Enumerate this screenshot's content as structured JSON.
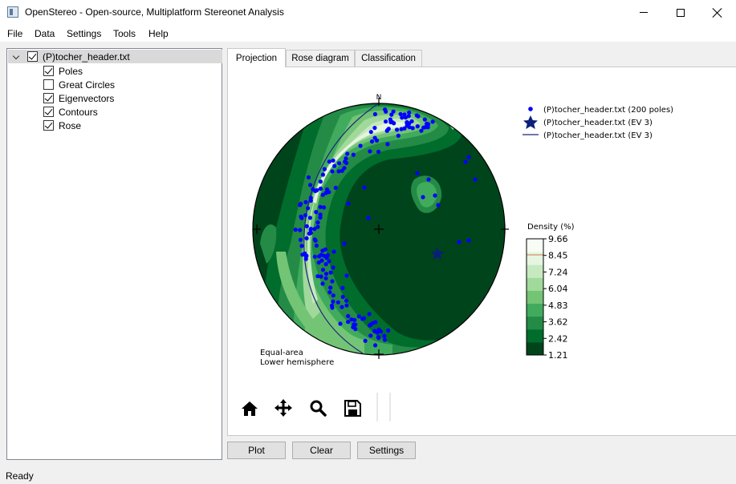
{
  "window": {
    "title": "OpenStereo - Open-source, Multiplatform Stereonet Analysis"
  },
  "menu": [
    "File",
    "Data",
    "Settings",
    "Tools",
    "Help"
  ],
  "tree": {
    "root": {
      "label": "(P)tocher_header.txt",
      "checked": true,
      "expanded": true
    },
    "children": [
      {
        "label": "Poles",
        "checked": true
      },
      {
        "label": "Great Circles",
        "checked": false
      },
      {
        "label": "Eigenvectors",
        "checked": true
      },
      {
        "label": "Contours",
        "checked": true
      },
      {
        "label": "Rose",
        "checked": true
      }
    ]
  },
  "tabs": [
    {
      "label": "Projection",
      "active": true
    },
    {
      "label": "Rose diagram",
      "active": false
    },
    {
      "label": "Classification",
      "active": false
    }
  ],
  "plot": {
    "north_label": "N",
    "projection_note_1": "Equal-area",
    "projection_note_2": "Lower hemisphere",
    "legend": [
      {
        "label": "(P)tocher_header.txt (200 poles)",
        "marker": "dot"
      },
      {
        "label": "(P)tocher_header.txt (EV 3)",
        "marker": "star"
      },
      {
        "label": "(P)tocher_header.txt (EV 3)",
        "marker": "line"
      }
    ],
    "colorbar": {
      "title": "Density (%)",
      "ticks": [
        "9.66",
        "8.45",
        "7.24",
        "6.04",
        "4.83",
        "3.62",
        "2.42",
        "1.21"
      ]
    },
    "colors": {
      "pole": "#0000ff",
      "eigenvector": "#0a1f7a",
      "great_circle": "#1a237e",
      "density_low": "#00441b",
      "density_high": "#f7fcf5"
    }
  },
  "toolbar": [
    "home-icon",
    "pan-icon",
    "zoom-icon",
    "save-icon"
  ],
  "buttons": {
    "plot": "Plot",
    "clear": "Clear",
    "settings": "Settings"
  },
  "status": "Ready"
}
